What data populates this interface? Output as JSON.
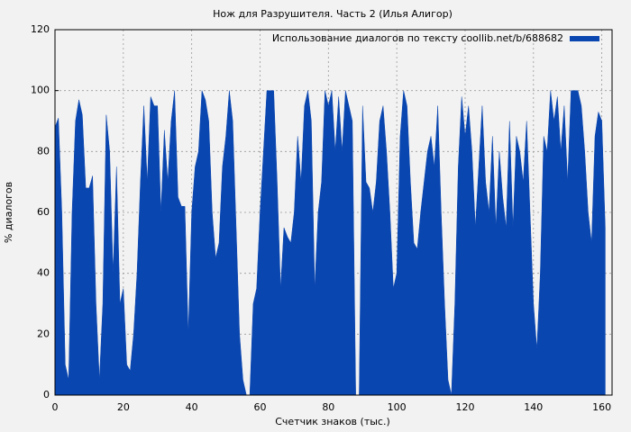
{
  "chart_data": {
    "type": "area",
    "title": "Нож для Разрушителя. Часть 2 (Илья Алигор)",
    "x_label": "Счетчик знаков (тыс.)",
    "y_label": "% диалогов",
    "legend_position": "upper right",
    "grid": true,
    "xlim": [
      0,
      163
    ],
    "xticks": [
      0,
      20,
      40,
      60,
      80,
      100,
      120,
      140,
      160
    ],
    "ylim": [
      0,
      120
    ],
    "yticks": [
      0,
      20,
      40,
      60,
      80,
      100,
      120
    ],
    "x": [
      0,
      1,
      2,
      3,
      4,
      5,
      6,
      7,
      8,
      9,
      10,
      11,
      12,
      13,
      14,
      15,
      16,
      17,
      18,
      19,
      20,
      21,
      22,
      23,
      24,
      25,
      26,
      27,
      28,
      29,
      30,
      31,
      32,
      33,
      34,
      35,
      36,
      37,
      38,
      39,
      40,
      41,
      42,
      43,
      44,
      45,
      46,
      47,
      48,
      49,
      50,
      51,
      52,
      53,
      54,
      55,
      56,
      57,
      58,
      59,
      60,
      61,
      62,
      63,
      64,
      65,
      66,
      67,
      68,
      69,
      70,
      71,
      72,
      73,
      74,
      75,
      76,
      77,
      78,
      79,
      80,
      81,
      82,
      83,
      84,
      85,
      86,
      87,
      88,
      89,
      90,
      91,
      92,
      93,
      94,
      95,
      96,
      97,
      98,
      99,
      100,
      101,
      102,
      103,
      104,
      105,
      106,
      107,
      108,
      109,
      110,
      111,
      112,
      113,
      114,
      115,
      116,
      117,
      118,
      119,
      120,
      121,
      122,
      123,
      124,
      125,
      126,
      127,
      128,
      129,
      130,
      131,
      132,
      133,
      134,
      135,
      136,
      137,
      138,
      139,
      140,
      141,
      142,
      143,
      144,
      145,
      146,
      147,
      148,
      149,
      150,
      151,
      152,
      153,
      154,
      155,
      156,
      157,
      158,
      159,
      160,
      161
    ],
    "series": [
      {
        "name": "Использование диалогов по тексту coollib.net/b/688682",
        "color": "#0a46b0",
        "values": [
          88,
          91,
          60,
          10,
          5,
          60,
          90,
          97,
          92,
          68,
          68,
          72,
          30,
          5,
          30,
          92,
          80,
          40,
          75,
          30,
          35,
          10,
          8,
          20,
          40,
          70,
          95,
          70,
          98,
          95,
          95,
          60,
          87,
          70,
          90,
          100,
          65,
          62,
          62,
          20,
          60,
          75,
          80,
          100,
          97,
          90,
          60,
          45,
          50,
          75,
          85,
          100,
          90,
          55,
          20,
          5,
          0,
          0,
          30,
          35,
          60,
          80,
          100,
          100,
          100,
          70,
          35,
          55,
          52,
          50,
          60,
          85,
          70,
          95,
          100,
          90,
          35,
          60,
          70,
          100,
          95,
          100,
          80,
          98,
          80,
          100,
          95,
          90,
          0,
          0,
          95,
          70,
          68,
          60,
          70,
          90,
          95,
          80,
          60,
          35,
          40,
          85,
          100,
          95,
          70,
          50,
          48,
          60,
          70,
          80,
          85,
          75,
          95,
          60,
          30,
          5,
          0,
          30,
          75,
          98,
          85,
          95,
          80,
          55,
          75,
          95,
          70,
          60,
          85,
          55,
          80,
          65,
          55,
          90,
          55,
          85,
          80,
          70,
          90,
          60,
          30,
          15,
          40,
          85,
          80,
          100,
          90,
          98,
          80,
          95,
          70,
          100,
          100,
          100,
          95,
          80,
          60,
          50,
          85,
          93,
          90,
          55
        ]
      }
    ]
  }
}
